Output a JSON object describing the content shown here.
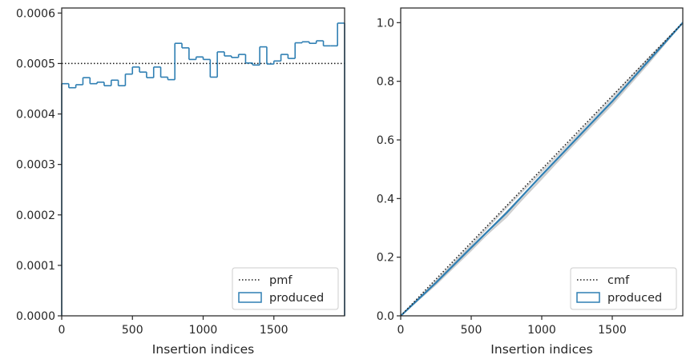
{
  "chart_data": [
    {
      "type": "histogram",
      "xlabel": "Insertion indices",
      "ylabel": "",
      "xlim": [
        0,
        2000
      ],
      "ylim": [
        0,
        0.00061
      ],
      "xticks": [
        0,
        500,
        1000,
        1500
      ],
      "xtick_labels": [
        "0",
        "500",
        "1000",
        "1500"
      ],
      "yticks": [
        0,
        0.0001,
        0.0002,
        0.0003,
        0.0004,
        0.0005,
        0.0006
      ],
      "ytick_labels": [
        "0.0000",
        "0.0001",
        "0.0002",
        "0.0003",
        "0.0004",
        "0.0005",
        "0.0006"
      ],
      "legend_position": "lower-right",
      "reference_line": {
        "name": "pmf",
        "y": 0.0005,
        "style": "dotted",
        "color": "#1a1a1a"
      },
      "histogram": {
        "name": "produced",
        "color": "#2f7fb3",
        "bin_edges": [
          0,
          50,
          100,
          150,
          200,
          250,
          300,
          350,
          400,
          450,
          500,
          550,
          600,
          650,
          700,
          750,
          800,
          850,
          900,
          950,
          1000,
          1050,
          1100,
          1150,
          1200,
          1250,
          1300,
          1350,
          1400,
          1450,
          1500,
          1550,
          1600,
          1650,
          1700,
          1750,
          1800,
          1850,
          1900,
          1950,
          2000
        ],
        "density": [
          0.00046,
          0.000452,
          0.000458,
          0.000472,
          0.00046,
          0.000463,
          0.000456,
          0.000467,
          0.000456,
          0.000479,
          0.000493,
          0.000483,
          0.000472,
          0.000493,
          0.000473,
          0.000468,
          0.00054,
          0.000531,
          0.000508,
          0.000513,
          0.000508,
          0.000473,
          0.000523,
          0.000515,
          0.000512,
          0.000518,
          0.000501,
          0.000497,
          0.000533,
          0.000499,
          0.000505,
          0.000518,
          0.00051,
          0.000541,
          0.000543,
          0.00054,
          0.000545,
          0.000535,
          0.000535,
          0.00058
        ]
      }
    },
    {
      "type": "line",
      "xlabel": "Insertion indices",
      "ylabel": "",
      "xlim": [
        0,
        2000
      ],
      "ylim": [
        0,
        1.05
      ],
      "xticks": [
        0,
        500,
        1000,
        1500
      ],
      "xtick_labels": [
        "0",
        "500",
        "1000",
        "1500"
      ],
      "yticks": [
        0,
        0.2,
        0.4,
        0.6,
        0.8,
        1.0
      ],
      "ytick_labels": [
        "0.0",
        "0.2",
        "0.4",
        "0.6",
        "0.8",
        "1.0"
      ],
      "legend_position": "lower-right",
      "reference_line": {
        "name": "cmf",
        "points": [
          [
            0,
            0
          ],
          [
            2000,
            1
          ]
        ],
        "style": "dotted",
        "color": "#1a1a1a"
      },
      "series": [
        {
          "name": "produced",
          "color": "#2f7fb3",
          "x": [
            0,
            250,
            500,
            750,
            1000,
            1250,
            1500,
            1750,
            2000
          ],
          "y": [
            0,
            0.113,
            0.233,
            0.351,
            0.48,
            0.606,
            0.732,
            0.866,
            1.0
          ]
        }
      ],
      "background_series_color": "#c9c9c9",
      "background_series": [
        {
          "x": [
            0,
            250,
            500,
            750,
            1000,
            1250,
            1500,
            1750,
            2000
          ],
          "y": [
            0,
            0.118,
            0.24,
            0.368,
            0.49,
            0.614,
            0.741,
            0.872,
            1.0
          ]
        },
        {
          "x": [
            0,
            250,
            500,
            750,
            1000,
            1250,
            1500,
            1750,
            2000
          ],
          "y": [
            0,
            0.109,
            0.226,
            0.34,
            0.466,
            0.597,
            0.724,
            0.859,
            1.0
          ]
        },
        {
          "x": [
            0,
            250,
            500,
            750,
            1000,
            1250,
            1500,
            1750,
            2000
          ],
          "y": [
            0,
            0.115,
            0.229,
            0.336,
            0.472,
            0.601,
            0.726,
            0.861,
            1.0
          ]
        },
        {
          "x": [
            0,
            250,
            500,
            750,
            1000,
            1250,
            1500,
            1750,
            2000
          ],
          "y": [
            0,
            0.12,
            0.245,
            0.372,
            0.495,
            0.619,
            0.747,
            0.877,
            1.0
          ]
        },
        {
          "x": [
            0,
            250,
            500,
            750,
            1000,
            1250,
            1500,
            1750,
            2000
          ],
          "y": [
            0,
            0.111,
            0.231,
            0.355,
            0.478,
            0.603,
            0.729,
            0.863,
            1.0
          ]
        },
        {
          "x": [
            0,
            250,
            500,
            750,
            1000,
            1250,
            1500,
            1750,
            2000
          ],
          "y": [
            0,
            0.106,
            0.222,
            0.345,
            0.47,
            0.595,
            0.72,
            0.856,
            1.0
          ]
        }
      ]
    }
  ]
}
